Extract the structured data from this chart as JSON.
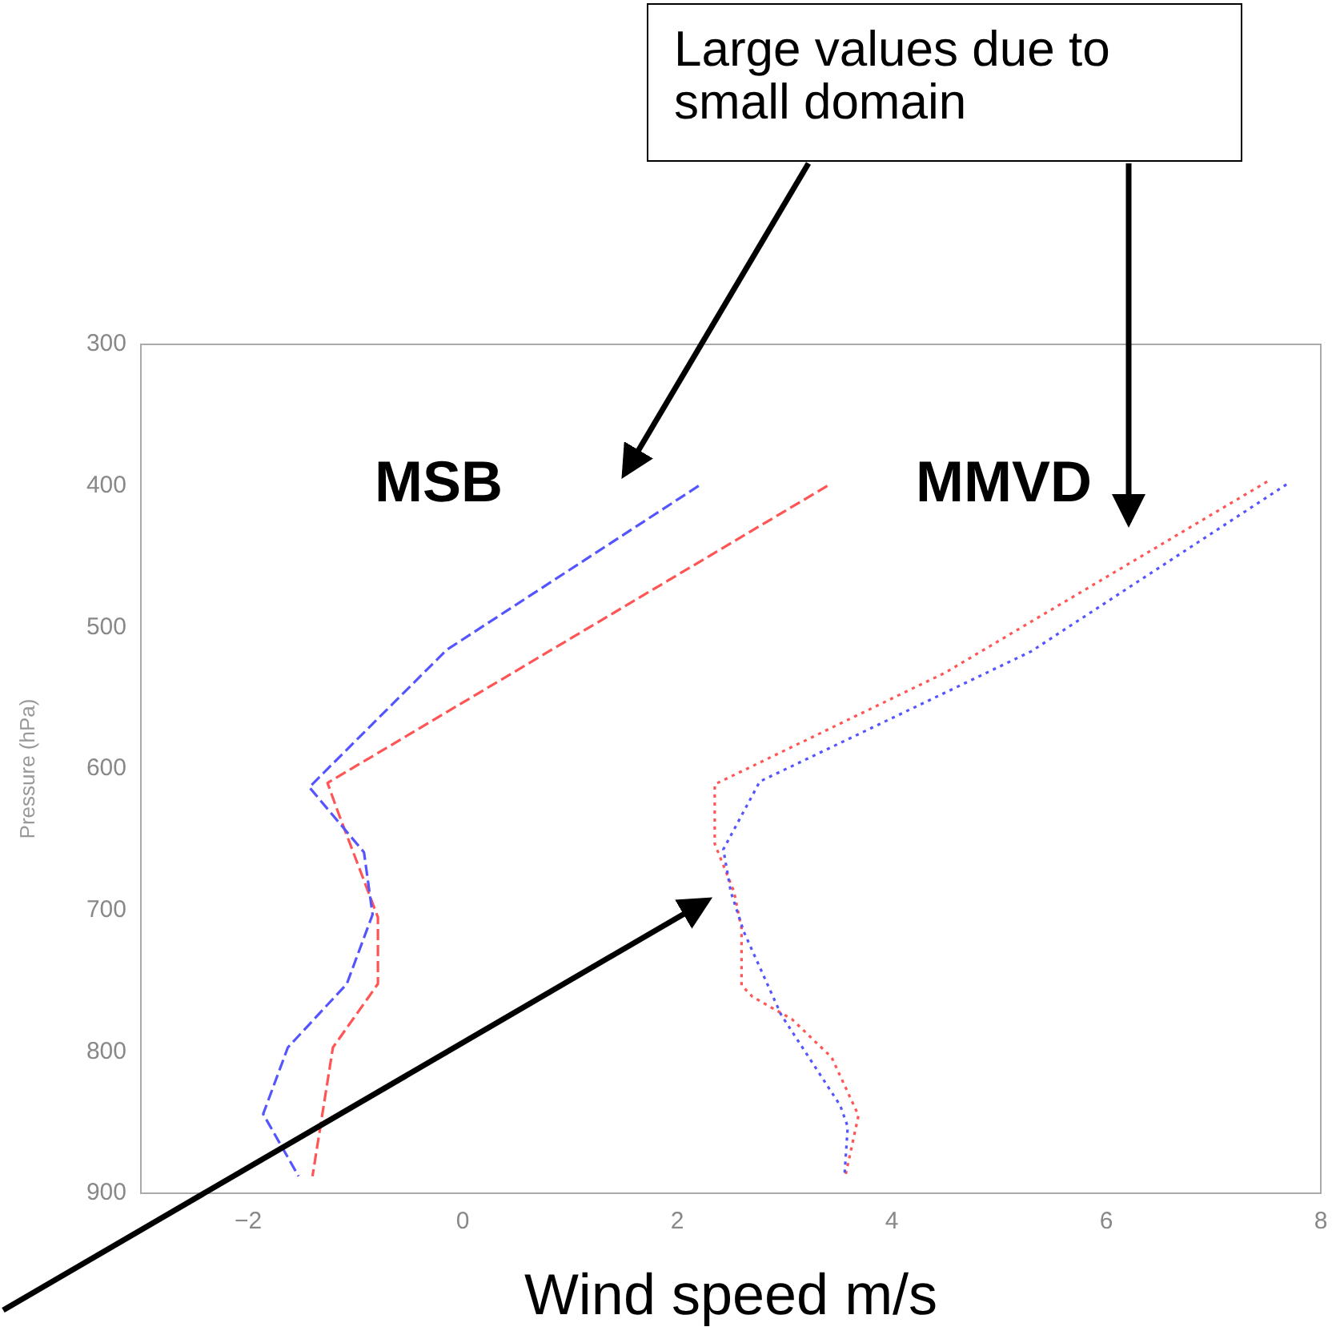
{
  "chart_data": {
    "type": "line",
    "xlabel": "Wind speed m/s",
    "ylabel": "Pressure (hPa)",
    "xlim": [
      -3,
      8
    ],
    "xticks": [
      {
        "value": -2,
        "label": "−2"
      },
      0,
      2,
      4,
      6,
      8
    ],
    "ylim": [
      900,
      300
    ],
    "yticks": [
      300,
      400,
      500,
      600,
      700,
      800,
      900
    ],
    "grid": false,
    "legend": false,
    "marker": "none",
    "annotations": [
      "Large values due to small domain",
      "MSB",
      "MMVD"
    ],
    "series": [
      {
        "color": "#5555ff",
        "line_style": "dashed",
        "x": [
          2.2,
          -0.15,
          -1.43,
          -0.92,
          -0.84,
          -1.08,
          -1.63,
          -1.86,
          -1.53
        ],
        "values": [
          400,
          516,
          613,
          659,
          703,
          752,
          797,
          844,
          888
        ]
      },
      {
        "color": "#ff5555",
        "line_style": "dashed",
        "x": [
          3.4,
          -1.26,
          -1.16,
          -0.79,
          -0.79,
          -1.21,
          -1.4
        ],
        "values": [
          400,
          610,
          631,
          705,
          752,
          797,
          888
        ]
      },
      {
        "color": "#5555ff",
        "line_style": "dotted",
        "x": [
          7.68,
          5.3,
          2.77,
          2.43,
          2.5,
          2.62,
          2.97,
          3.52,
          3.59,
          3.56
        ],
        "values": [
          399,
          517,
          609,
          657,
          687,
          715,
          774,
          838,
          853,
          887
        ]
      },
      {
        "color": "#ff5555",
        "line_style": "dotted",
        "x": [
          7.5,
          4.5,
          2.35,
          2.35,
          2.53,
          2.6,
          2.6,
          2.7,
          3.07,
          3.44,
          3.69,
          3.57
        ],
        "values": [
          397,
          532,
          611,
          653,
          687,
          713,
          753,
          761,
          777,
          804,
          845,
          887
        ]
      }
    ]
  }
}
